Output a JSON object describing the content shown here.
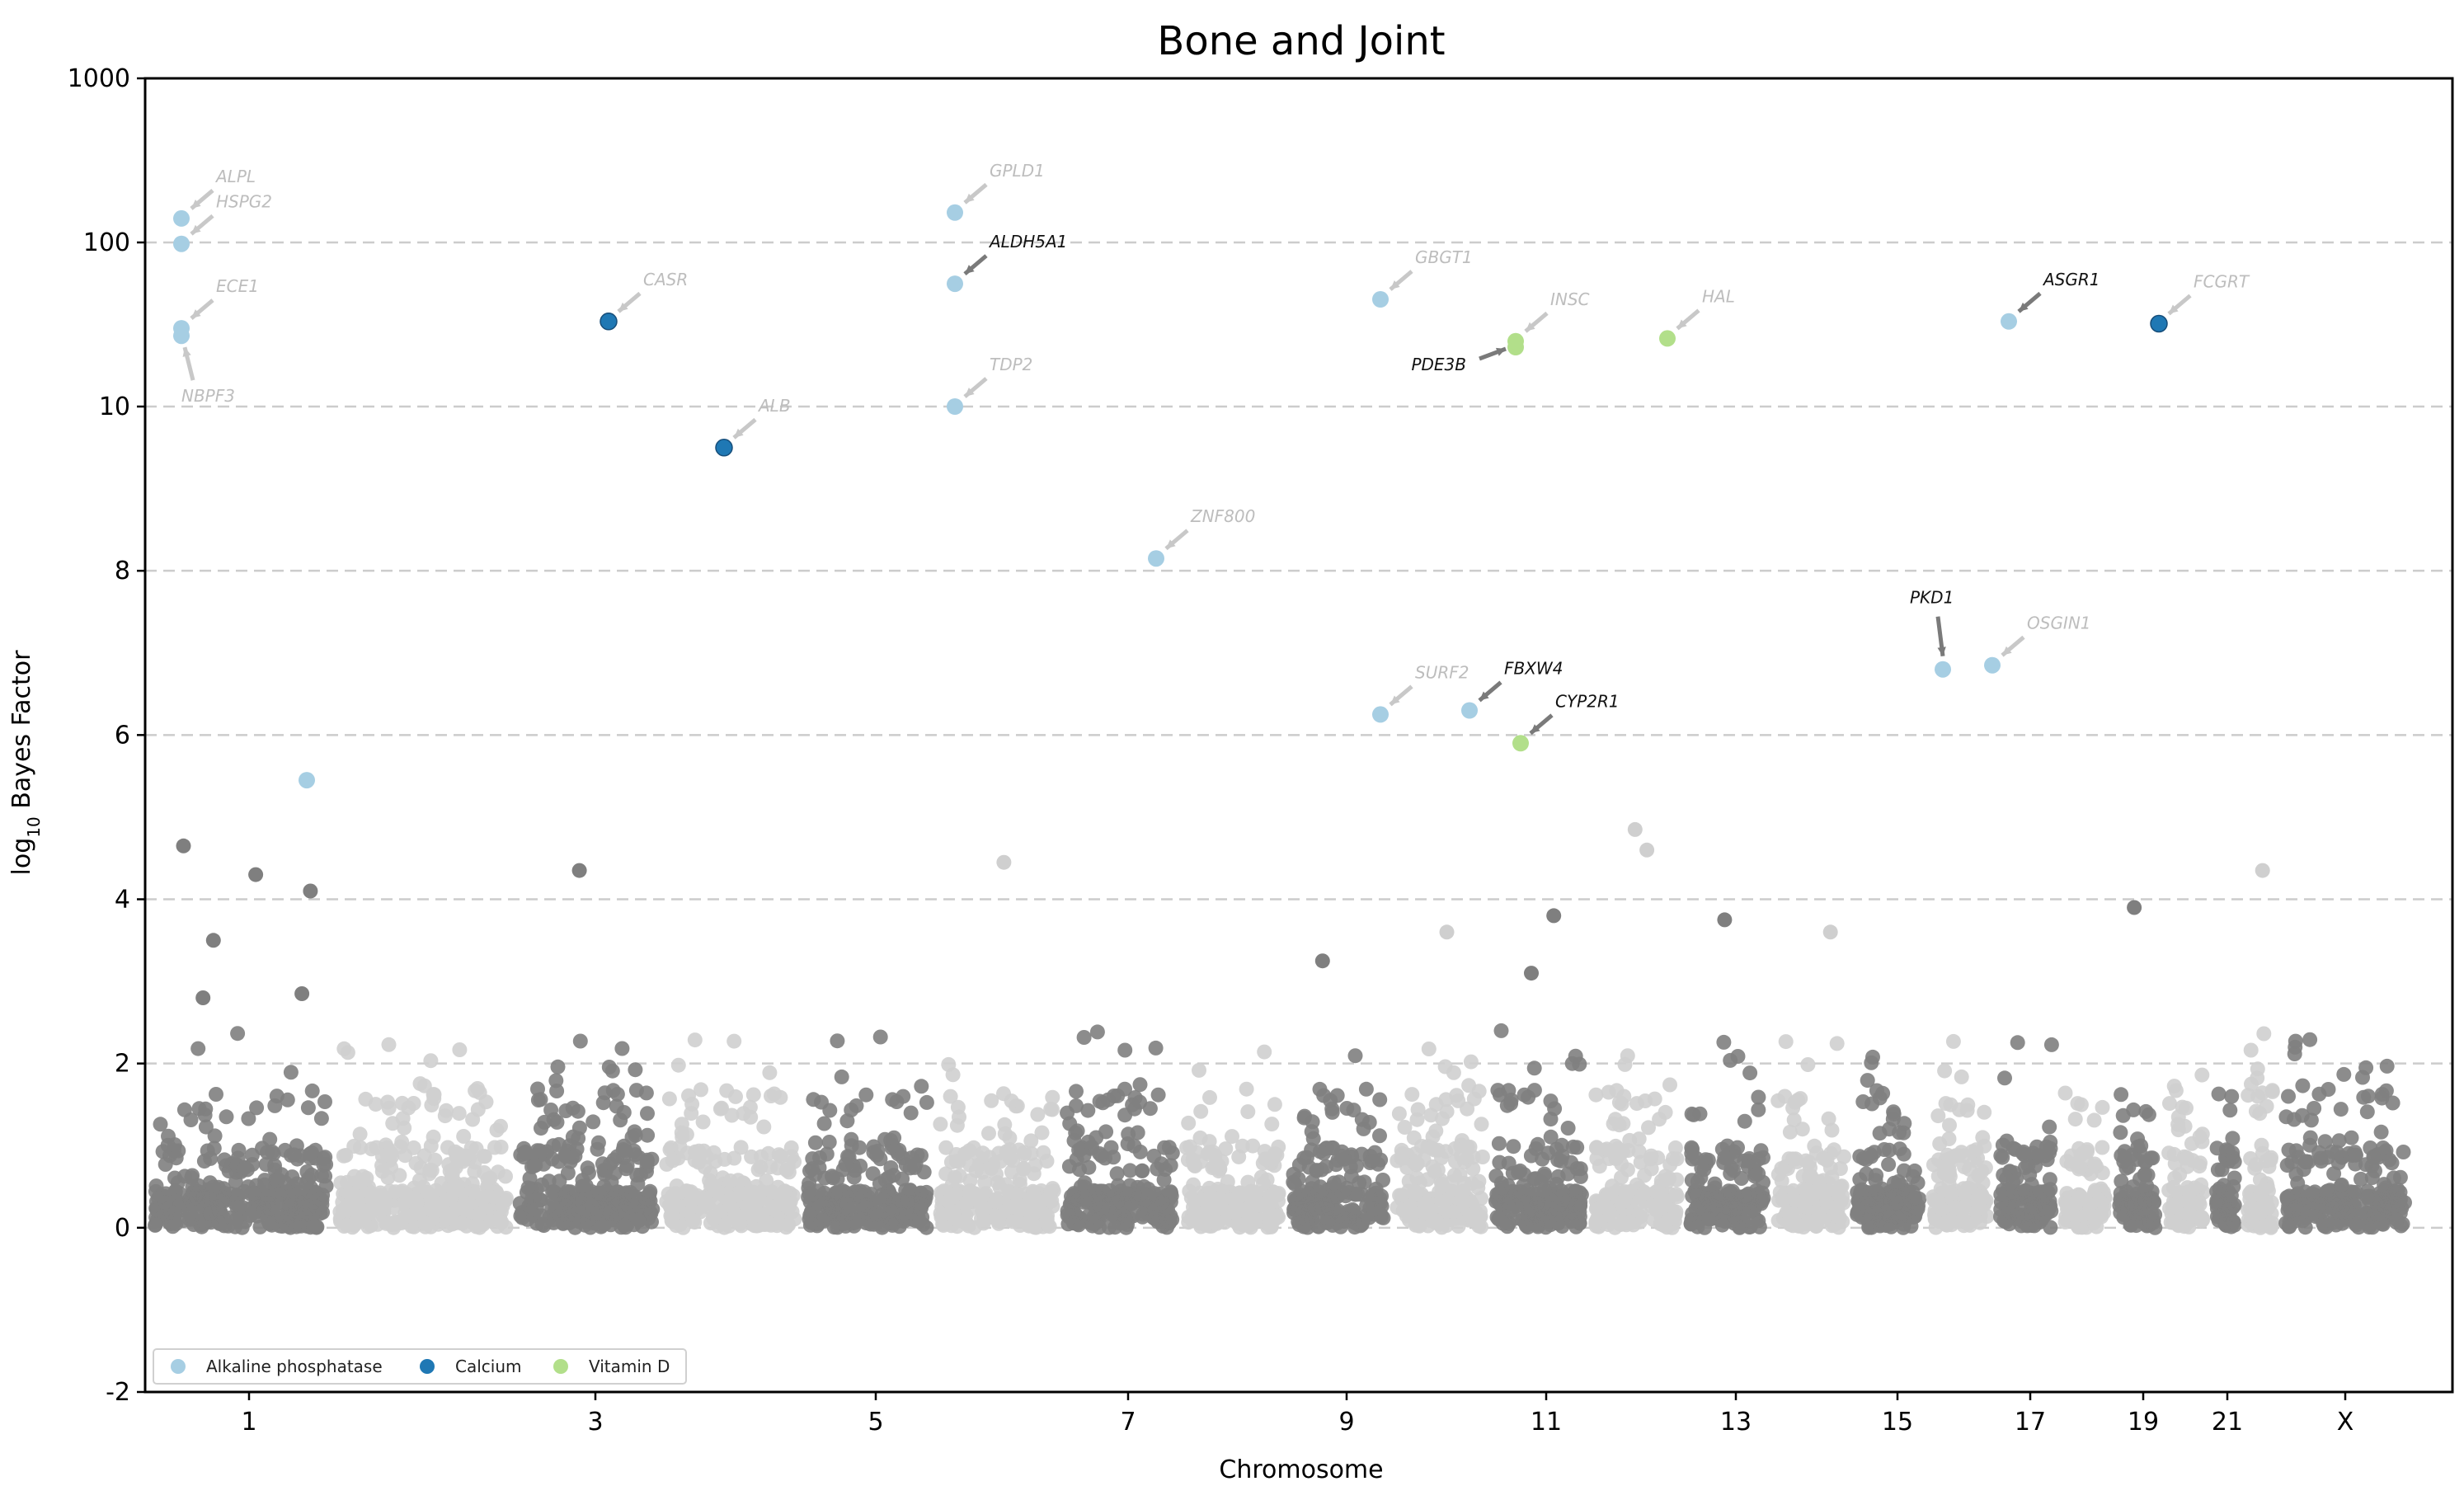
{
  "chart_data": {
    "type": "scatter",
    "title": "Bone and Joint",
    "xlabel": "Chromosome",
    "ylabel": "log10 Bayes Factor",
    "y_scale": "linear below 10, log10 from 10 to 1000",
    "ylim": [
      -2,
      1000
    ],
    "y_ticks": [
      "-2",
      "0",
      "2",
      "4",
      "6",
      "8",
      "10",
      "100",
      "1000"
    ],
    "x_ticks": [
      "1",
      "3",
      "5",
      "7",
      "9",
      "11",
      "13",
      "15",
      "17",
      "19",
      "21",
      "X"
    ],
    "grid": "horizontal dashed",
    "legend_position": "lower-left",
    "colors": {
      "chromosome_dark": "#7f7f7f",
      "chromosome_light": "#cfcfcf",
      "alkaline_phosphatase": "#a6cee3",
      "calcium": "#1f78b4",
      "vitamin_d": "#b2df8a",
      "grid": "#cccccc"
    },
    "legend": [
      {
        "name": "Alkaline phosphatase",
        "color": "#a6cee3"
      },
      {
        "name": "Calcium",
        "color": "#1f78b4"
      },
      {
        "name": "Vitamin D",
        "color": "#b2df8a"
      }
    ],
    "highlighted_points": [
      {
        "gene": "ALPL",
        "trait": "Alkaline phosphatase",
        "chrom": "1",
        "y": 140,
        "label_color": "light"
      },
      {
        "gene": "HSPG2",
        "trait": "Alkaline phosphatase",
        "chrom": "1",
        "y": 98,
        "label_color": "light"
      },
      {
        "gene": "ECE1",
        "trait": "Alkaline phosphatase",
        "chrom": "1",
        "y": 30,
        "label_color": "light"
      },
      {
        "gene": "NBPF3",
        "trait": "Alkaline phosphatase",
        "chrom": "1",
        "y": 27,
        "label_color": "light"
      },
      {
        "gene": "CASR",
        "trait": "Calcium",
        "chrom": "3",
        "y": 33,
        "label_color": "light"
      },
      {
        "gene": "ALB",
        "trait": "Calcium",
        "chrom": "4",
        "y": 9.5,
        "label_color": "light"
      },
      {
        "gene": "GPLD1",
        "trait": "Alkaline phosphatase",
        "chrom": "6",
        "y": 152,
        "label_color": "light"
      },
      {
        "gene": "ALDH5A1",
        "trait": "Alkaline phosphatase",
        "chrom": "6",
        "y": 56,
        "label_color": "dark"
      },
      {
        "gene": "TDP2",
        "trait": "Alkaline phosphatase",
        "chrom": "6",
        "y": 10,
        "label_color": "light"
      },
      {
        "gene": "ZNF800",
        "trait": "Alkaline phosphatase",
        "chrom": "7",
        "y": 8.15,
        "label_color": "light"
      },
      {
        "gene": "GBGT1",
        "trait": "Alkaline phosphatase",
        "chrom": "9",
        "y": 45,
        "label_color": "light"
      },
      {
        "gene": "SURF2",
        "trait": "Alkaline phosphatase",
        "chrom": "9",
        "y": 6.25,
        "label_color": "light"
      },
      {
        "gene": "FBXW4",
        "trait": "Alkaline phosphatase",
        "chrom": "10",
        "y": 6.3,
        "label_color": "dark"
      },
      {
        "gene": "PDE3B",
        "trait": "Vitamin D",
        "chrom": "11",
        "y": 23,
        "label_color": "dark"
      },
      {
        "gene": "INSC",
        "trait": "Vitamin D",
        "chrom": "11",
        "y": 25,
        "label_color": "light"
      },
      {
        "gene": "CYP2R1",
        "trait": "Vitamin D",
        "chrom": "11",
        "y": 5.9,
        "label_color": "dark"
      },
      {
        "gene": "HAL",
        "trait": "Vitamin D",
        "chrom": "12",
        "y": 26,
        "label_color": "light"
      },
      {
        "gene": "PKD1",
        "trait": "Alkaline phosphatase",
        "chrom": "16",
        "y": 6.8,
        "label_color": "dark"
      },
      {
        "gene": "OSGIN1",
        "trait": "Alkaline phosphatase",
        "chrom": "16",
        "y": 6.85,
        "label_color": "light"
      },
      {
        "gene": "ASGR1",
        "trait": "Alkaline phosphatase",
        "chrom": "17",
        "y": 33,
        "label_color": "dark"
      },
      {
        "gene": "FCGRT",
        "trait": "Calcium",
        "chrom": "19",
        "y": 32,
        "label_color": "light"
      },
      {
        "gene": "",
        "trait": "Alkaline phosphatase",
        "chrom": "2",
        "y": 5.45,
        "label_color": "none"
      }
    ],
    "notable_background_points": [
      {
        "chrom": "1",
        "y": 4.65
      },
      {
        "chrom": "1",
        "y": 4.3
      },
      {
        "chrom": "1",
        "y": 4.1
      },
      {
        "chrom": "1",
        "y": 3.5
      },
      {
        "chrom": "1",
        "y": 2.85
      },
      {
        "chrom": "1",
        "y": 2.8
      },
      {
        "chrom": "3",
        "y": 4.35
      },
      {
        "chrom": "6",
        "y": 4.45
      },
      {
        "chrom": "10",
        "y": 3.6
      },
      {
        "chrom": "11",
        "y": 3.1
      },
      {
        "chrom": "11",
        "y": 3.8
      },
      {
        "chrom": "12",
        "y": 4.85
      },
      {
        "chrom": "12",
        "y": 4.6
      },
      {
        "chrom": "13",
        "y": 3.75
      },
      {
        "chrom": "14",
        "y": 3.6
      },
      {
        "chrom": "19",
        "y": 3.9
      },
      {
        "chrom": "22",
        "y": 4.35
      },
      {
        "chrom": "9",
        "y": 3.25
      }
    ]
  }
}
